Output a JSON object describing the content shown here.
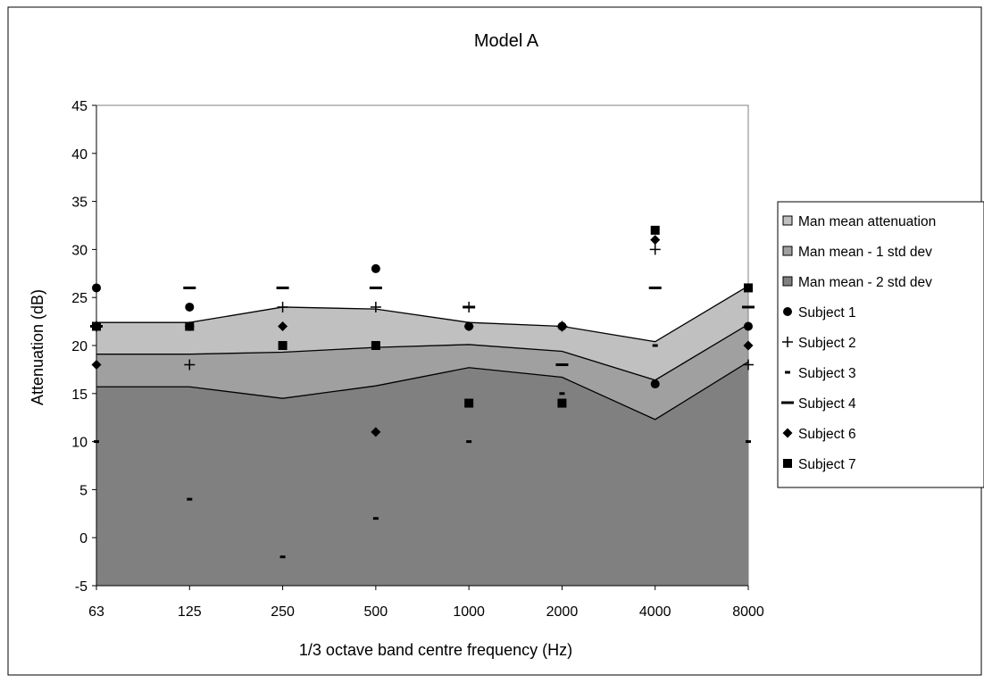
{
  "chart_data": {
    "type": "area",
    "title": "Model A",
    "xlabel": "1/3 octave band centre frequency (Hz)",
    "ylabel": "Attenuation (dB)",
    "categories": [
      "63",
      "125",
      "250",
      "500",
      "1000",
      "2000",
      "4000",
      "8000"
    ],
    "ylim": [
      -5,
      45
    ],
    "yticks": [
      -5,
      0,
      5,
      10,
      15,
      20,
      25,
      30,
      35,
      40,
      45
    ],
    "grid": false,
    "legend_position": "right",
    "areas": [
      {
        "name": "Man mean attenuation",
        "color": "#c0c0c0",
        "values": [
          22.4,
          22.4,
          24.0,
          23.8,
          22.4,
          22.0,
          20.4,
          26.2
        ]
      },
      {
        "name": "Man mean - 1 std dev",
        "color": "#a0a0a0",
        "values": [
          19.1,
          19.1,
          19.3,
          19.8,
          20.1,
          19.4,
          16.4,
          22.2
        ]
      },
      {
        "name": "Man mean - 2 std dev",
        "color": "#808080",
        "values": [
          15.7,
          15.7,
          14.5,
          15.8,
          17.7,
          16.7,
          12.3,
          18.3
        ]
      }
    ],
    "points": [
      {
        "name": "Subject 1",
        "marker": "circle",
        "values": [
          26,
          24,
          null,
          28,
          22,
          22,
          16,
          22
        ]
      },
      {
        "name": "Subject 2",
        "marker": "plus",
        "values": [
          22,
          18,
          24,
          24,
          24,
          22,
          30,
          18
        ]
      },
      {
        "name": "Subject 3",
        "marker": "short-dash",
        "values": [
          10,
          4,
          -2,
          2,
          10,
          15,
          20,
          10
        ]
      },
      {
        "name": "Subject 4",
        "marker": "long-dash",
        "values": [
          22,
          26,
          26,
          26,
          24,
          18,
          26,
          24
        ]
      },
      {
        "name": "Subject 6",
        "marker": "diamond",
        "values": [
          18,
          22,
          22,
          11,
          22,
          22,
          31,
          20
        ]
      },
      {
        "name": "Subject 7",
        "marker": "square",
        "values": [
          22,
          22,
          20,
          20,
          14,
          14,
          32,
          26
        ]
      }
    ]
  }
}
